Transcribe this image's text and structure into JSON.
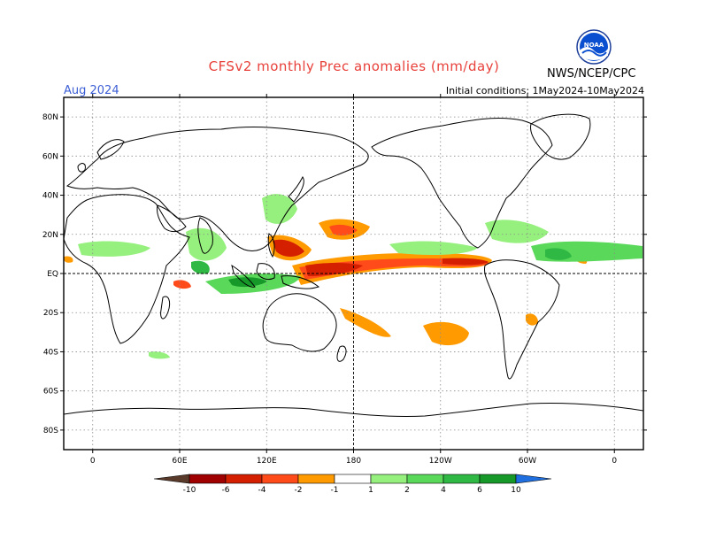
{
  "header": {
    "title": "CFSv2 monthly Prec anomalies (mm/day)",
    "month": "Aug 2024",
    "initial_conditions": "Initial conditions: 1May2024-10May2024",
    "agency": "NWS/NCEP/CPC",
    "logo_text": "NOAA"
  },
  "map": {
    "lon_range": [
      -20,
      380
    ],
    "lat_range": [
      -90,
      90
    ],
    "y_ticks": [
      "80N",
      "60N",
      "40N",
      "20N",
      "EQ",
      "20S",
      "40S",
      "60S",
      "80S"
    ],
    "x_ticks": [
      "0",
      "60E",
      "120E",
      "180",
      "120W",
      "60W",
      "0"
    ],
    "reference_lines": [
      "EQ",
      "180"
    ],
    "grid": "dotted"
  },
  "colorbar": {
    "labels": [
      "-10",
      "-6",
      "-4",
      "-2",
      "-1",
      "1",
      "2",
      "4",
      "6",
      "10"
    ],
    "colors": {
      "lt_-10": "#5a3a2a",
      "-10_-6": "#a00000",
      "-6_-4": "#d41f00",
      "-4_-2": "#ff4a1a",
      "-2_-1": "#ff9a00",
      "-1_1": "#ffffff",
      "1_2": "#96f07e",
      "2_4": "#5ad85a",
      "4_6": "#2fb844",
      "6_10": "#17992a",
      "gt_10": "#1f6fe0"
    }
  }
}
